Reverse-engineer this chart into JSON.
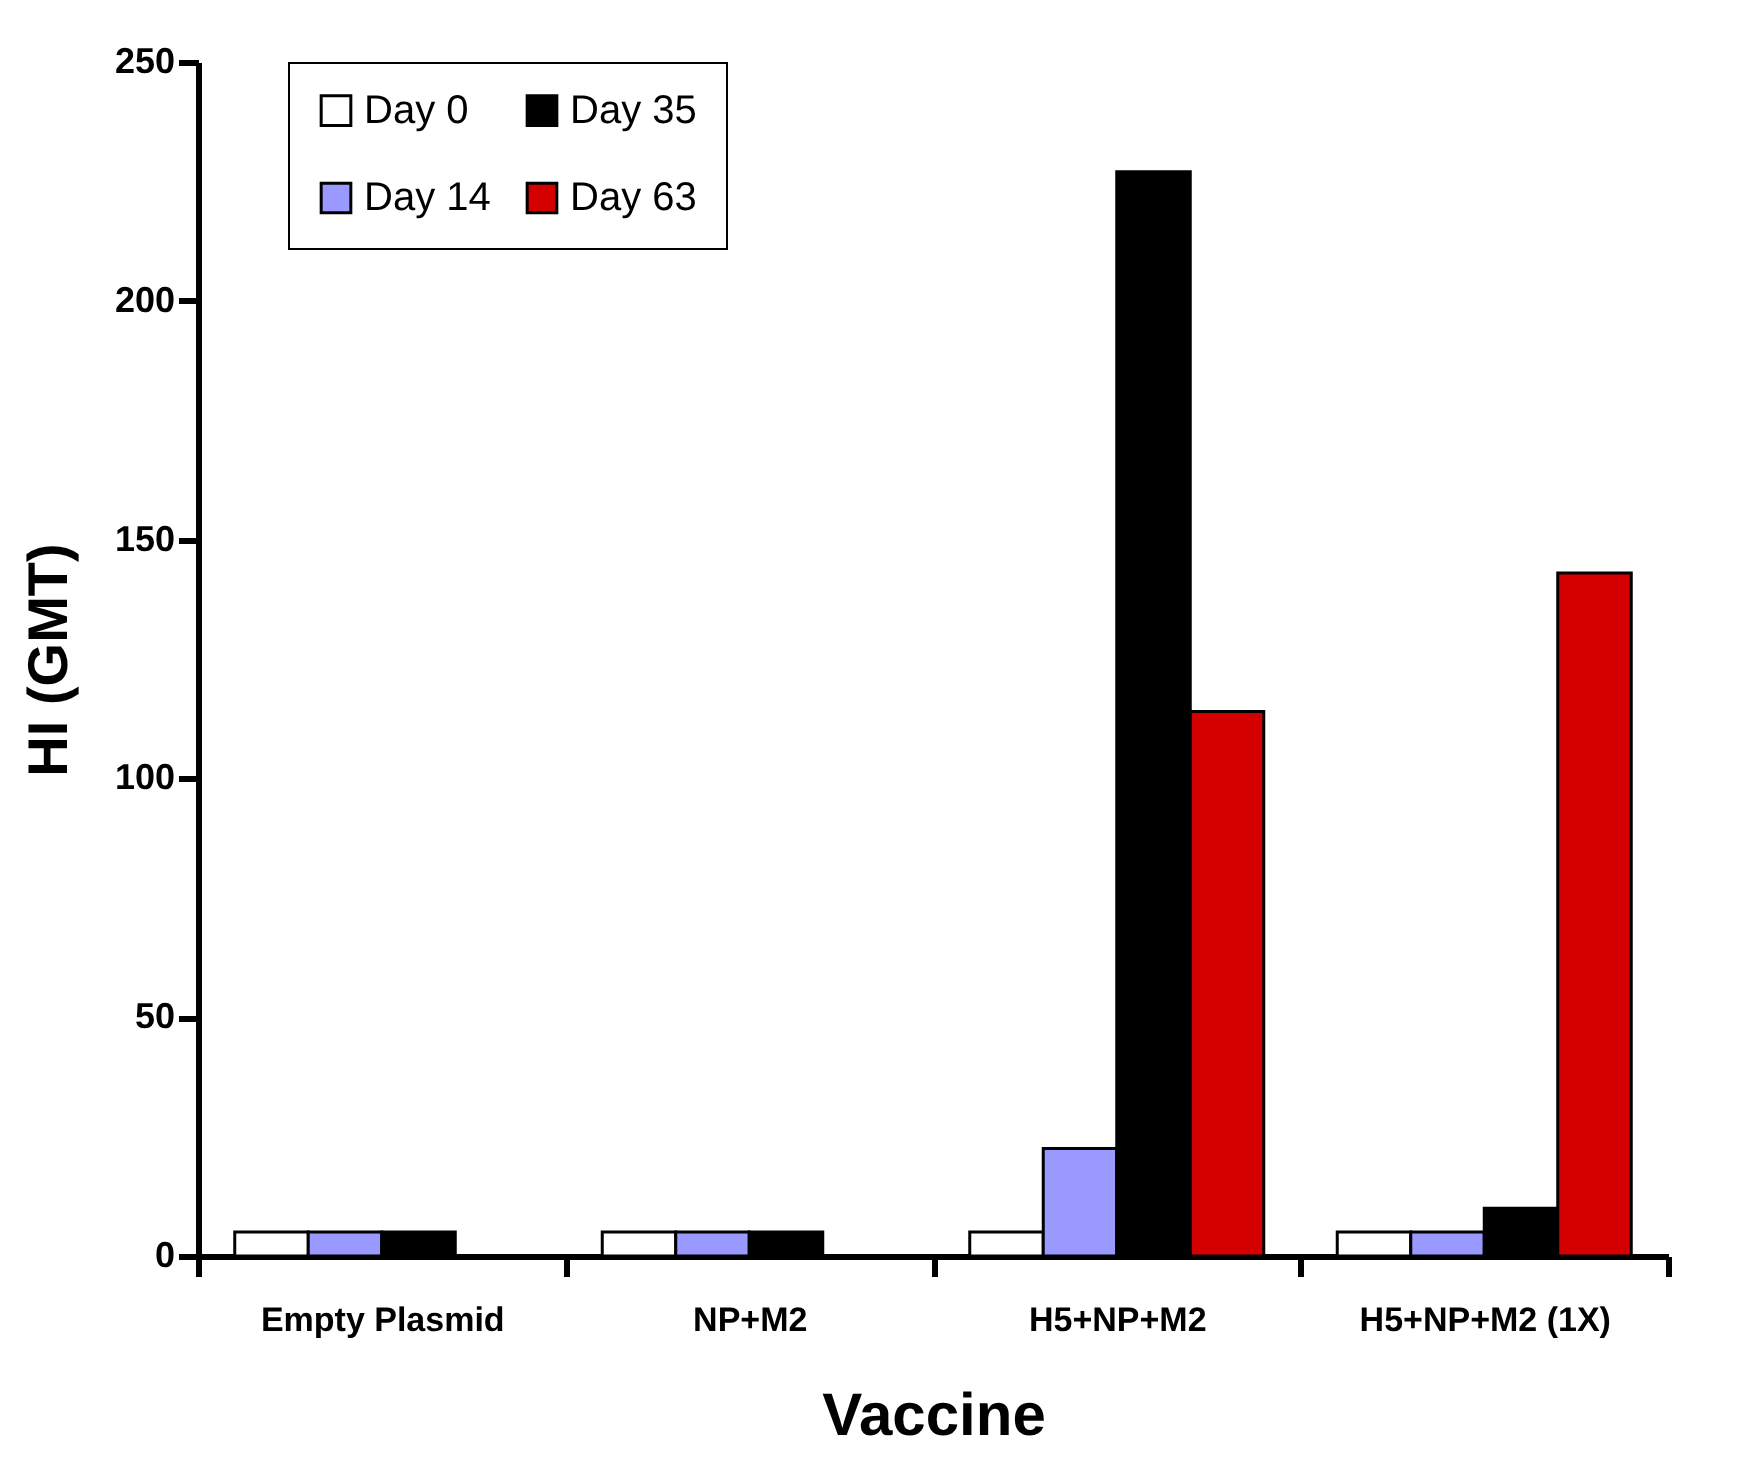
{
  "chart_data": {
    "type": "bar",
    "xlabel": "Vaccine",
    "ylabel": "HI (GMT)",
    "categories": [
      "Empty Plasmid",
      "NP+M2",
      "H5+NP+M2",
      "H5+NP+M2 (1X)"
    ],
    "series": [
      {
        "name": "Day 0",
        "color": "#ffffff",
        "values": [
          5,
          5,
          5,
          5
        ]
      },
      {
        "name": "Day 14",
        "color": "#9999ff",
        "values": [
          5,
          5,
          22.5,
          5
        ]
      },
      {
        "name": "Day 35",
        "color": "#000000",
        "values": [
          5,
          5,
          227,
          10
        ]
      },
      {
        "name": "Day 63",
        "color": "#d40000",
        "values": [
          null,
          null,
          114,
          143
        ]
      }
    ],
    "ylim": [
      0,
      250
    ],
    "yticks": [
      0,
      50,
      100,
      150,
      200,
      250
    ],
    "legend": "top left",
    "grid": false
  }
}
